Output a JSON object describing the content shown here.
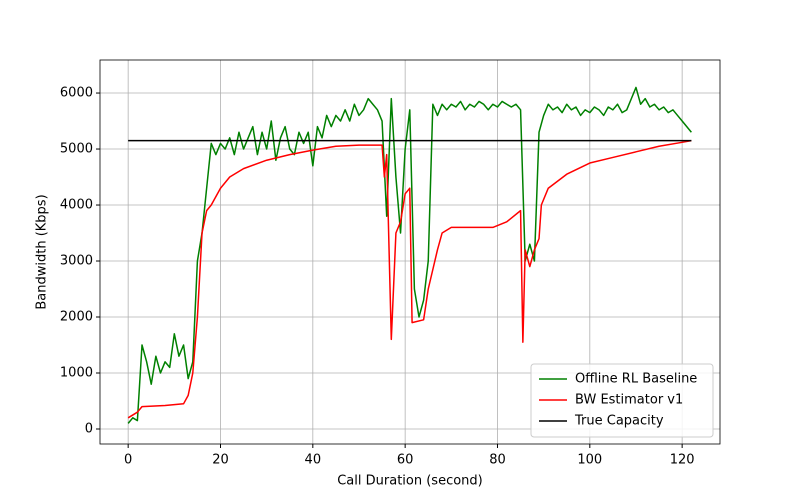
{
  "chart_data": {
    "type": "line",
    "xlabel": "Call Duration (second)",
    "ylabel": "Bandwidth (Kbps)",
    "xlim": [
      -6.1,
      128.2
    ],
    "ylim": [
      -268,
      6590
    ],
    "xticks": [
      0,
      20,
      40,
      60,
      80,
      100,
      120
    ],
    "yticks": [
      0,
      1000,
      2000,
      3000,
      4000,
      5000,
      6000
    ],
    "grid": true,
    "legend": "lower right",
    "series": [
      {
        "name": "Offline RL Baseline",
        "color": "#008000",
        "x": [
          0,
          1,
          2,
          3,
          4,
          5,
          6,
          7,
          8,
          9,
          10,
          11,
          12,
          13,
          14,
          15,
          16,
          17,
          18,
          19,
          20,
          21,
          22,
          23,
          24,
          25,
          26,
          27,
          28,
          29,
          30,
          31,
          32,
          33,
          34,
          35,
          36,
          37,
          38,
          39,
          40,
          41,
          42,
          43,
          44,
          45,
          46,
          47,
          48,
          49,
          50,
          51,
          52,
          53,
          54,
          55,
          56,
          57,
          58,
          59,
          60,
          61,
          62,
          63,
          64,
          65,
          66,
          67,
          68,
          69,
          70,
          71,
          72,
          73,
          74,
          75,
          76,
          77,
          78,
          79,
          80,
          81,
          82,
          83,
          84,
          85,
          86,
          87,
          88,
          89,
          90,
          91,
          92,
          93,
          94,
          95,
          96,
          97,
          98,
          99,
          100,
          101,
          102,
          103,
          104,
          105,
          106,
          107,
          108,
          109,
          110,
          111,
          112,
          113,
          114,
          115,
          116,
          117,
          118,
          119,
          120,
          121,
          122
        ],
        "values": [
          100,
          200,
          150,
          1500,
          1200,
          800,
          1300,
          1000,
          1200,
          1100,
          1700,
          1300,
          1500,
          900,
          1200,
          3000,
          3500,
          4300,
          5100,
          4900,
          5100,
          5000,
          5200,
          4900,
          5300,
          5000,
          5200,
          5400,
          4900,
          5300,
          5000,
          5500,
          4800,
          5200,
          5400,
          5000,
          4900,
          5300,
          5100,
          5300,
          4700,
          5400,
          5200,
          5600,
          5400,
          5600,
          5500,
          5700,
          5500,
          5800,
          5600,
          5700,
          5900,
          5800,
          5700,
          5500,
          3800,
          5900,
          4500,
          3500,
          5000,
          5700,
          2500,
          2000,
          2300,
          3000,
          5800,
          5600,
          5800,
          5700,
          5800,
          5750,
          5850,
          5700,
          5800,
          5750,
          5850,
          5800,
          5700,
          5800,
          5750,
          5850,
          5800,
          5750,
          5800,
          5700,
          3000,
          3300,
          3000,
          5300,
          5600,
          5800,
          5700,
          5750,
          5650,
          5800,
          5700,
          5750,
          5600,
          5700,
          5650,
          5750,
          5700,
          5600,
          5750,
          5700,
          5800,
          5650,
          5700,
          5900,
          6100,
          5800,
          5900,
          5750,
          5800,
          5700,
          5750,
          5650,
          5700,
          5600,
          5500,
          5400,
          5300
        ]
      },
      {
        "name": "BW Estimator v1",
        "color": "#ff0000",
        "x": [
          0,
          2,
          3,
          8,
          12,
          13,
          14,
          15,
          16,
          17,
          18,
          20,
          22,
          25,
          30,
          35,
          40,
          45,
          50,
          55,
          55.5,
          56,
          57,
          58,
          59,
          60,
          61,
          61.5,
          64,
          65,
          67,
          68,
          70,
          79,
          82,
          85,
          85.5,
          86,
          87,
          88,
          89,
          89.5,
          91,
          95,
          100,
          105,
          110,
          115,
          120,
          122
        ],
        "values": [
          200,
          300,
          400,
          420,
          450,
          600,
          1000,
          2000,
          3500,
          3900,
          4000,
          4300,
          4500,
          4650,
          4800,
          4900,
          4980,
          5050,
          5070,
          5070,
          4500,
          4900,
          1600,
          3500,
          3700,
          4200,
          4300,
          1900,
          1950,
          2500,
          3200,
          3500,
          3600,
          3600,
          3700,
          3900,
          1550,
          3200,
          2900,
          3200,
          3400,
          4000,
          4300,
          4550,
          4750,
          4850,
          4950,
          5050,
          5120,
          5150
        ]
      },
      {
        "name": "True Capacity",
        "color": "#000000",
        "x": [
          0,
          122
        ],
        "values": [
          5150,
          5150
        ]
      }
    ]
  }
}
